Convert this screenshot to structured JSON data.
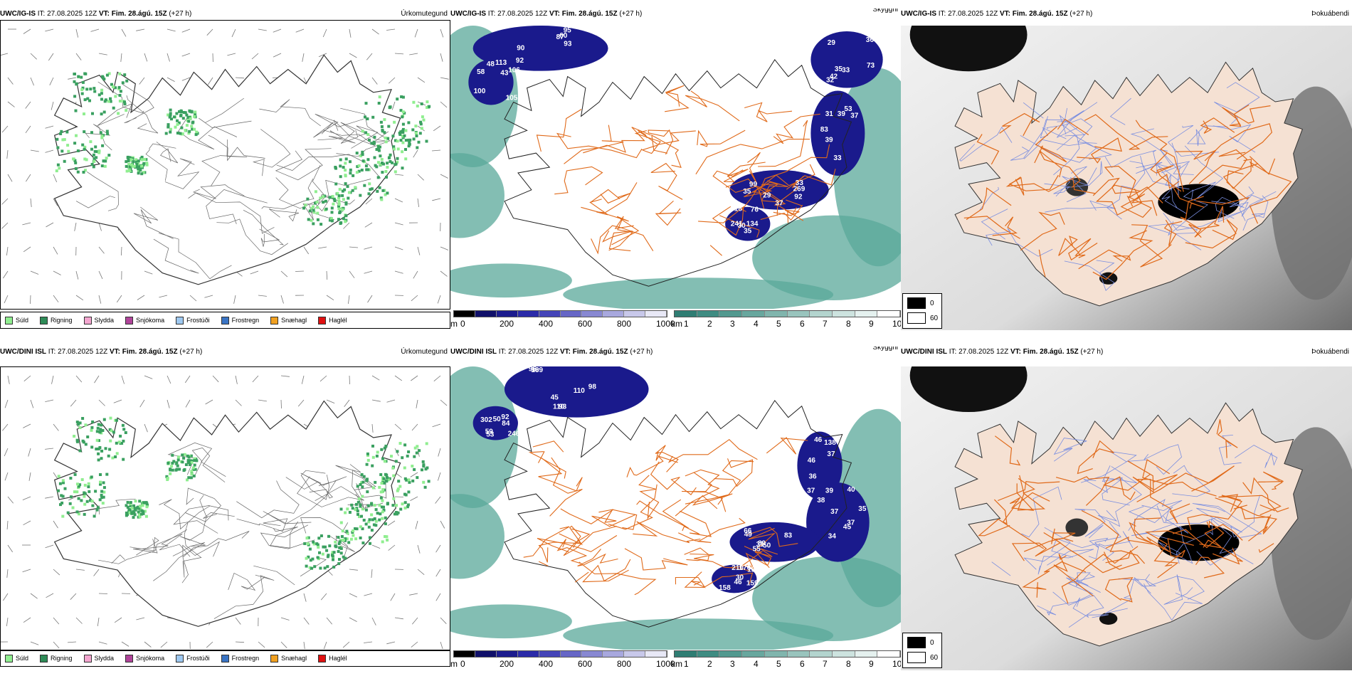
{
  "rows": [
    {
      "model": "UWC/IG-IS",
      "it": "IT: 27.08.2025 12Z",
      "vt": "VT: Fim. 28.ágú. 15Z",
      "lead": "(+27 h)",
      "titles": {
        "precip": "Úrkomutegund",
        "cloud": "Skyggni",
        "fog": "Þokuábendi"
      },
      "cloud_labels": [
        "92",
        "90",
        "95",
        "90",
        "93",
        "87",
        "60",
        "105",
        "100",
        "113",
        "106",
        "43",
        "48",
        "58",
        "73",
        "29",
        "36",
        "32",
        "35",
        "33",
        "42",
        "33",
        "39",
        "31",
        "37",
        "39",
        "53",
        "83",
        "99",
        "92",
        "37",
        "33",
        "35",
        "29",
        "269",
        "241",
        "134",
        "30",
        "76",
        "18",
        "35"
      ]
    },
    {
      "model": "UWC/DINI ISL",
      "it": "IT: 27.08.2025 12Z",
      "vt": "VT: Fim. 28.ágú. 15Z",
      "lead": "(+27 h)",
      "titles": {
        "precip": "Úrkomutegund",
        "cloud": "Skyggni",
        "fog": "Þokuábendi"
      },
      "cloud_labels": [
        "99",
        "98",
        "93",
        "96",
        "110",
        "110",
        "45",
        "246",
        "302",
        "92",
        "59",
        "50",
        "84",
        "53",
        "46",
        "138",
        "37",
        "37",
        "39",
        "36",
        "46",
        "38",
        "40",
        "37",
        "37",
        "45",
        "34",
        "35",
        "89",
        "66",
        "83",
        "55",
        "31",
        "50",
        "49",
        "158",
        "159",
        "210",
        "159",
        "176",
        "46",
        "30",
        "169"
      ]
    }
  ],
  "precip_legend": [
    {
      "label": "Súld",
      "color": "#90ee90"
    },
    {
      "label": "Rigning",
      "color": "#2e8b57"
    },
    {
      "label": "Slydda",
      "color": "#f4a6d0"
    },
    {
      "label": "Snjókoma",
      "color": "#b0449a"
    },
    {
      "label": "Frostúði",
      "color": "#9ec8f0"
    },
    {
      "label": "Frostregn",
      "color": "#3a74c4"
    },
    {
      "label": "Snæhagl",
      "color": "#f0a020"
    },
    {
      "label": "Haglél",
      "color": "#e01010"
    }
  ],
  "ceiling_bar": {
    "unit": "m",
    "ticks": [
      "0",
      "200",
      "400",
      "600",
      "800",
      "1000"
    ]
  },
  "vis_bar": {
    "unit": "km",
    "ticks": [
      "1",
      "2",
      "3",
      "4",
      "5",
      "6",
      "7",
      "8",
      "9",
      "10"
    ]
  },
  "fog_legend": {
    "values": [
      "0",
      "60"
    ]
  },
  "colors": {
    "island_fill": "#f5e1d3",
    "road": "#e06a1a",
    "river": "#7a8ee0",
    "deep_blue": "#1a1a8c",
    "teal": "#5aa89a",
    "precip_green": "#3aa060",
    "light_green": "#90ee90"
  }
}
